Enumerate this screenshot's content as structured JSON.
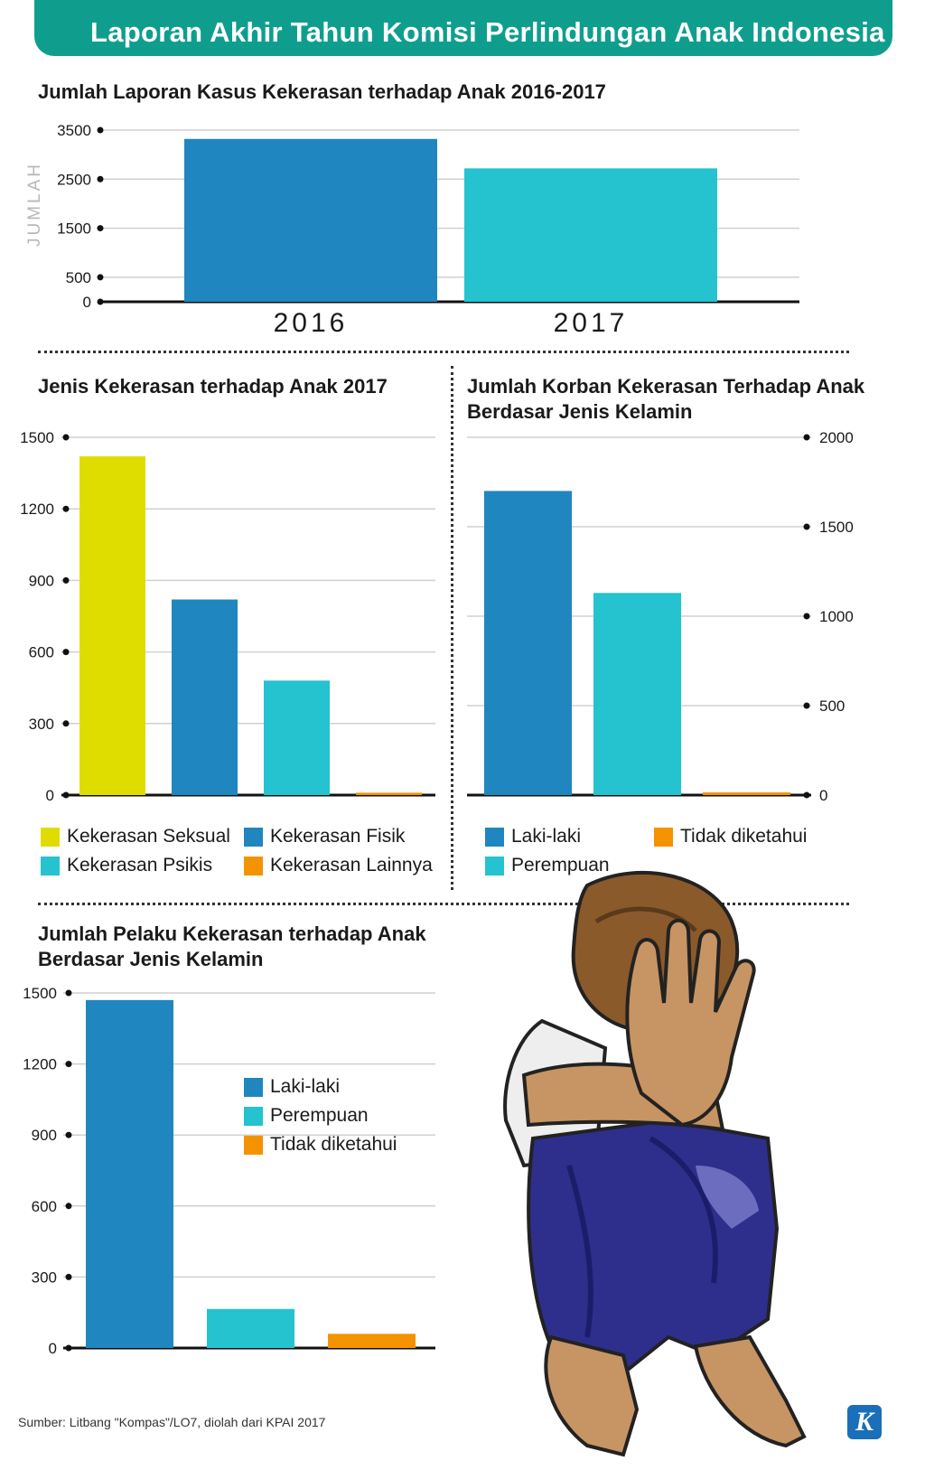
{
  "header": {
    "title": "Laporan Akhir Tahun Komisi Perlindungan Anak Indonesia"
  },
  "colors": {
    "banner": "#0f9e8e",
    "blue": "#1f86bf",
    "cyan": "#25c2cf",
    "yellow": "#dfdc00",
    "orange": "#f39300"
  },
  "chart_data": [
    {
      "type": "bar",
      "title": "Jumlah Laporan Kasus Kekerasan terhadap Anak 2016-2017",
      "ylabel": "JUMLAH",
      "categories": [
        "2016",
        "2017"
      ],
      "values": [
        3320,
        2720
      ],
      "colors": [
        "#1f86bf",
        "#25c2cf"
      ],
      "yticks": [
        0,
        500,
        1500,
        2500,
        3500
      ],
      "ylim": [
        0,
        3500
      ],
      "grid": true
    },
    {
      "type": "bar",
      "title": "Jenis Kekerasan terhadap Anak 2017",
      "series_names": [
        "Kekerasan Seksual",
        "Kekerasan Fisik",
        "Kekerasan Psikis",
        "Kekerasan Lainnya"
      ],
      "values": [
        1420,
        820,
        480,
        10
      ],
      "colors": [
        "#dfdc00",
        "#1f86bf",
        "#25c2cf",
        "#f39300"
      ],
      "yticks": [
        0,
        300,
        600,
        900,
        1200,
        1500
      ],
      "ylim": [
        0,
        1500
      ],
      "grid": true,
      "legend": "bottom"
    },
    {
      "type": "bar",
      "title_lines": [
        "Jumlah Korban Kekerasan Terhadap Anak",
        "Berdasar Jenis Kelamin"
      ],
      "series_names": [
        "Laki-laki",
        "Perempuan",
        "Tidak diketahui"
      ],
      "values": [
        1700,
        1130,
        15
      ],
      "colors": [
        "#1f86bf",
        "#25c2cf",
        "#f39300"
      ],
      "yticks": [
        0,
        500,
        1000,
        1500,
        2000
      ],
      "ylim": [
        0,
        2000
      ],
      "grid": true,
      "axis_side": "right",
      "legend": "bottom"
    },
    {
      "type": "bar",
      "title_lines": [
        "Jumlah Pelaku Kekerasan terhadap Anak",
        "Berdasar Jenis Kelamin"
      ],
      "series_names": [
        "Laki-laki",
        "Perempuan",
        "Tidak diketahui"
      ],
      "values": [
        1470,
        165,
        60
      ],
      "colors": [
        "#1f86bf",
        "#25c2cf",
        "#f39300"
      ],
      "yticks": [
        0,
        300,
        600,
        900,
        1200,
        1500
      ],
      "ylim": [
        0,
        1500
      ],
      "grid": true,
      "legend": "inside-right"
    }
  ],
  "source": "Sumber: Litbang \"Kompas\"/LO7, diolah dari KPAI 2017",
  "logo": {
    "letter": "K",
    "icon": "kompas-logo-icon"
  },
  "illustration": {
    "icon": "child-covering-face-icon"
  }
}
